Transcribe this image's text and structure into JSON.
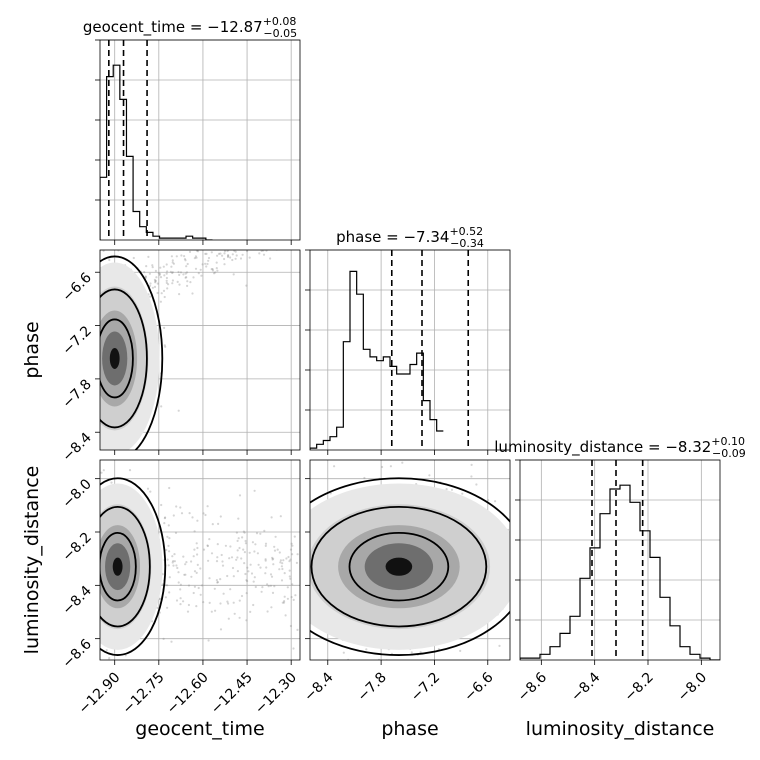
{
  "chart_data": {
    "type": "corner",
    "parameters": [
      "geocent_time",
      "phase",
      "luminosity_distance"
    ],
    "titles": [
      {
        "param": "geocent_time",
        "prefix": "geocent_time = ",
        "median": "−12.87",
        "plus": "+0.08",
        "minus": "−0.05"
      },
      {
        "param": "phase",
        "prefix": "phase = ",
        "median": "−7.34",
        "plus": "+0.52",
        "minus": "−0.34"
      },
      {
        "param": "luminosity_distance",
        "prefix": "luminosity_distance = ",
        "median": "−8.32",
        "plus": "+0.10",
        "minus": "−0.09"
      }
    ],
    "axes": {
      "geocent_time": {
        "range": [
          -12.95,
          -12.27
        ],
        "ticks": [
          -12.9,
          -12.75,
          -12.6,
          -12.45,
          -12.3
        ],
        "tick_labels": [
          "−12.90",
          "−12.75",
          "−12.60",
          "−12.45",
          "−12.30"
        ]
      },
      "phase": {
        "range": [
          -8.6,
          -6.35
        ],
        "ticks": [
          -8.4,
          -7.8,
          -7.2,
          -6.6
        ],
        "tick_labels": [
          "−8.4",
          "−7.8",
          "−7.2",
          "−6.6"
        ]
      },
      "luminosity_distance": {
        "range": [
          -8.68,
          -7.93
        ],
        "ticks": [
          -8.6,
          -8.4,
          -8.2,
          -8.0
        ],
        "tick_labels": [
          "−8.6",
          "−8.4",
          "−8.2",
          "−8.0"
        ]
      }
    },
    "x_labels": [
      "geocent_time",
      "phase",
      "luminosity_distance"
    ],
    "y_labels": {
      "row1": "phase",
      "row2": "luminosity_distance"
    },
    "quantiles": {
      "geocent_time": [
        -12.92,
        -12.87,
        -12.79
      ],
      "phase": [
        -7.68,
        -7.34,
        -6.82
      ],
      "luminosity_distance": [
        -8.41,
        -8.32,
        -8.22
      ]
    },
    "hist1d": {
      "geocent_time": {
        "edges_from": -12.95,
        "bin_width": 0.0225,
        "counts": [
          0.33,
          0.86,
          0.92,
          0.74,
          0.44,
          0.15,
          0.07,
          0.04,
          0.02,
          0.01,
          0.01,
          0.01,
          0.01,
          0.02,
          0.01,
          0.01,
          0.0
        ]
      },
      "phase": {
        "edges_from": -8.6,
        "bin_width": 0.075,
        "counts": [
          0.01,
          0.03,
          0.05,
          0.07,
          0.12,
          0.57,
          0.94,
          0.82,
          0.53,
          0.49,
          0.47,
          0.49,
          0.44,
          0.4,
          0.4,
          0.45,
          0.51,
          0.26,
          0.16,
          0.1
        ]
      },
      "luminosity_distance": {
        "edges_from": -8.68,
        "bin_width": 0.0375,
        "counts": [
          0.01,
          0.01,
          0.03,
          0.07,
          0.14,
          0.23,
          0.43,
          0.59,
          0.77,
          0.9,
          0.92,
          0.83,
          0.68,
          0.54,
          0.33,
          0.18,
          0.07,
          0.03,
          0.01,
          0.0
        ]
      }
    },
    "hist2d": {
      "phase_vs_geocent_time": {
        "x": "geocent_time",
        "y": "phase",
        "mode": [
          -12.9,
          -7.57
        ],
        "x_spread": 0.015,
        "y_spread": 0.22
      },
      "luminosity_distance_vs_geocent_time": {
        "x": "geocent_time",
        "y": "luminosity_distance",
        "mode": [
          -12.89,
          -8.33
        ],
        "x_spread": 0.02,
        "y_spread": 0.07
      },
      "luminosity_distance_vs_phase": {
        "x": "phase",
        "y": "luminosity_distance",
        "mode": [
          -7.6,
          -8.33
        ],
        "x_spread": 0.4,
        "y_spread": 0.07
      }
    }
  }
}
